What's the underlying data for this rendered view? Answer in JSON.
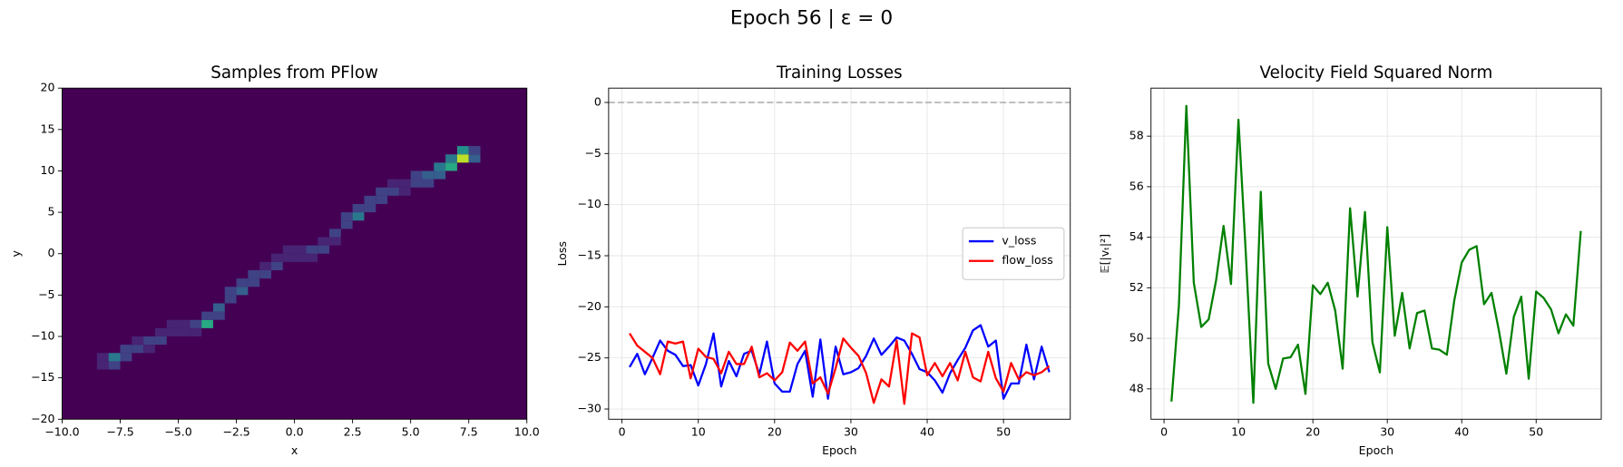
{
  "title": "Epoch 56 | ε = 0",
  "chart_data": [
    {
      "type": "heatmap",
      "title": "Samples from PFlow",
      "xlabel": "x",
      "ylabel": "y",
      "cmap": "viridis",
      "clim": [
        0,
        10
      ],
      "xlim": [
        -10,
        10
      ],
      "ylim": [
        -20,
        20
      ],
      "xticks": [
        {
          "value": -10,
          "label": "−10.0"
        },
        {
          "value": -7.5,
          "label": "−7.5"
        },
        {
          "value": -5,
          "label": "−5.0"
        },
        {
          "value": -2.5,
          "label": "−2.5"
        },
        {
          "value": 0,
          "label": "0.0"
        },
        {
          "value": 2.5,
          "label": "2.5"
        },
        {
          "value": 5,
          "label": "5.0"
        },
        {
          "value": 7.5,
          "label": "7.5"
        },
        {
          "value": 10,
          "label": "10.0"
        }
      ],
      "yticks": [
        {
          "value": -20,
          "label": "−20"
        },
        {
          "value": -15,
          "label": "−15"
        },
        {
          "value": -10,
          "label": "−10"
        },
        {
          "value": -5,
          "label": "−5"
        },
        0,
        5,
        10,
        15,
        20
      ],
      "bin_size": [
        0.5,
        1
      ],
      "cells": [
        {
          "x": -8.5,
          "y": -14,
          "count": 1
        },
        {
          "x": -8.5,
          "y": -13,
          "count": 1
        },
        {
          "x": -8,
          "y": -14,
          "count": 2
        },
        {
          "x": -8,
          "y": -13,
          "count": 4
        },
        {
          "x": -7.5,
          "y": -13,
          "count": 2
        },
        {
          "x": -7.5,
          "y": -12,
          "count": 2
        },
        {
          "x": -7,
          "y": -12,
          "count": 2
        },
        {
          "x": -7,
          "y": -11,
          "count": 1
        },
        {
          "x": -6.5,
          "y": -12,
          "count": 1
        },
        {
          "x": -6.5,
          "y": -11,
          "count": 2
        },
        {
          "x": -6,
          "y": -11,
          "count": 2
        },
        {
          "x": -6,
          "y": -10,
          "count": 1
        },
        {
          "x": -5.5,
          "y": -10,
          "count": 1
        },
        {
          "x": -5.5,
          "y": -9,
          "count": 1
        },
        {
          "x": -5,
          "y": -10,
          "count": 1
        },
        {
          "x": -5,
          "y": -9,
          "count": 1
        },
        {
          "x": -4.5,
          "y": -10,
          "count": 1
        },
        {
          "x": -4.5,
          "y": -9,
          "count": 2
        },
        {
          "x": -4,
          "y": -9,
          "count": 6
        },
        {
          "x": -4,
          "y": -8,
          "count": 2
        },
        {
          "x": -3.5,
          "y": -8,
          "count": 2
        },
        {
          "x": -3.5,
          "y": -7,
          "count": 3
        },
        {
          "x": -3,
          "y": -6,
          "count": 2
        },
        {
          "x": -3,
          "y": -5,
          "count": 2
        },
        {
          "x": -2.5,
          "y": -5,
          "count": 3
        },
        {
          "x": -2.5,
          "y": -4,
          "count": 2
        },
        {
          "x": -2,
          "y": -4,
          "count": 2
        },
        {
          "x": -2,
          "y": -3,
          "count": 2
        },
        {
          "x": -1.5,
          "y": -3,
          "count": 2
        },
        {
          "x": -1.5,
          "y": -2,
          "count": 1
        },
        {
          "x": -1,
          "y": -2,
          "count": 2
        },
        {
          "x": -1,
          "y": -1,
          "count": 1
        },
        {
          "x": -0.5,
          "y": -1,
          "count": 1
        },
        {
          "x": -0.5,
          "y": 0,
          "count": 1
        },
        {
          "x": 0,
          "y": -1,
          "count": 1
        },
        {
          "x": 0,
          "y": 0,
          "count": 1
        },
        {
          "x": 0.5,
          "y": -1,
          "count": 1
        },
        {
          "x": 0.5,
          "y": 0,
          "count": 2
        },
        {
          "x": 1,
          "y": 0,
          "count": 2
        },
        {
          "x": 1,
          "y": 1,
          "count": 1
        },
        {
          "x": 1.5,
          "y": 1,
          "count": 1
        },
        {
          "x": 1.5,
          "y": 2,
          "count": 2
        },
        {
          "x": 2,
          "y": 3,
          "count": 2
        },
        {
          "x": 2,
          "y": 4,
          "count": 2
        },
        {
          "x": 2.5,
          "y": 4,
          "count": 4
        },
        {
          "x": 2.5,
          "y": 5,
          "count": 2
        },
        {
          "x": 3,
          "y": 5,
          "count": 2
        },
        {
          "x": 3,
          "y": 6,
          "count": 2
        },
        {
          "x": 3.5,
          "y": 6,
          "count": 2
        },
        {
          "x": 3.5,
          "y": 7,
          "count": 2
        },
        {
          "x": 4,
          "y": 7,
          "count": 2
        },
        {
          "x": 4,
          "y": 8,
          "count": 1
        },
        {
          "x": 4.5,
          "y": 7,
          "count": 1
        },
        {
          "x": 4.5,
          "y": 8,
          "count": 1
        },
        {
          "x": 5,
          "y": 8,
          "count": 2
        },
        {
          "x": 5,
          "y": 9,
          "count": 2
        },
        {
          "x": 5.5,
          "y": 8,
          "count": 2
        },
        {
          "x": 5.5,
          "y": 9,
          "count": 3
        },
        {
          "x": 6,
          "y": 9,
          "count": 3
        },
        {
          "x": 6,
          "y": 10,
          "count": 4
        },
        {
          "x": 6.5,
          "y": 10,
          "count": 6
        },
        {
          "x": 6.5,
          "y": 11,
          "count": 4
        },
        {
          "x": 7,
          "y": 11,
          "count": 9
        },
        {
          "x": 7,
          "y": 12,
          "count": 5
        },
        {
          "x": 7.5,
          "y": 11,
          "count": 3
        },
        {
          "x": 7.5,
          "y": 12,
          "count": 2
        }
      ]
    },
    {
      "type": "line",
      "title": "Training Losses",
      "xlabel": "Epoch",
      "ylabel": "Loss",
      "grid": true,
      "legend": "center right",
      "xlim": [
        -1.75,
        58.75
      ],
      "ylim": [
        -31,
        1.4
      ],
      "xticks": [
        0,
        10,
        20,
        30,
        40,
        50
      ],
      "yticks": [
        {
          "value": -30,
          "label": "−30"
        },
        {
          "value": -25,
          "label": "−25"
        },
        {
          "value": -20,
          "label": "−20"
        },
        {
          "value": -15,
          "label": "−15"
        },
        {
          "value": -10,
          "label": "−10"
        },
        {
          "value": -5,
          "label": "−5"
        },
        0
      ],
      "hline": 0,
      "x": [
        1,
        2,
        3,
        4,
        5,
        6,
        7,
        8,
        9,
        10,
        11,
        12,
        13,
        14,
        15,
        16,
        17,
        18,
        19,
        20,
        21,
        22,
        23,
        24,
        25,
        26,
        27,
        28,
        29,
        30,
        31,
        32,
        33,
        34,
        35,
        36,
        37,
        38,
        39,
        40,
        41,
        42,
        43,
        44,
        45,
        46,
        47,
        48,
        49,
        50,
        51,
        52,
        53,
        54,
        55,
        56
      ],
      "series": [
        {
          "name": "v_loss",
          "color": "#0000ff",
          "values": [
            -25.9,
            -24.6,
            -26.6,
            -25.0,
            -23.3,
            -24.3,
            -24.7,
            -25.8,
            -25.7,
            -27.7,
            -25.6,
            -22.6,
            -27.8,
            -25.3,
            -26.8,
            -24.6,
            -24.3,
            -26.6,
            -23.4,
            -27.5,
            -28.3,
            -28.3,
            -25.6,
            -24.3,
            -28.8,
            -23.2,
            -29.0,
            -23.9,
            -26.6,
            -26.4,
            -26.0,
            -24.8,
            -23.1,
            -24.7,
            -23.9,
            -23.0,
            -23.3,
            -24.6,
            -26.1,
            -26.4,
            -27.2,
            -28.4,
            -26.5,
            -25.2,
            -24.0,
            -22.3,
            -21.8,
            -23.9,
            -23.3,
            -29.0,
            -27.5,
            -27.5,
            -23.7,
            -27.1,
            -23.9,
            -26.4
          ]
        },
        {
          "name": "flow_loss",
          "color": "#ff0000",
          "values": [
            -22.6,
            -23.8,
            -24.4,
            -25.0,
            -26.6,
            -23.4,
            -23.6,
            -23.4,
            -27.0,
            -24.1,
            -24.9,
            -25.1,
            -26.5,
            -24.4,
            -25.6,
            -25.6,
            -23.9,
            -26.9,
            -26.5,
            -27.2,
            -26.4,
            -23.5,
            -24.3,
            -23.4,
            -27.5,
            -26.9,
            -28.5,
            -26.0,
            -23.1,
            -24.0,
            -24.8,
            -26.5,
            -29.4,
            -27.1,
            -27.8,
            -23.3,
            -29.5,
            -22.6,
            -23.0,
            -26.7,
            -25.5,
            -26.8,
            -25.5,
            -27.2,
            -24.4,
            -26.9,
            -27.3,
            -24.4,
            -27.0,
            -28.3,
            -25.5,
            -27.1,
            -26.4,
            -26.7,
            -26.4,
            -25.8
          ]
        }
      ]
    },
    {
      "type": "line",
      "title": "Velocity Field Squared Norm",
      "xlabel": "Epoch",
      "ylabel": "𝔼[|vₜ|²]",
      "grid": true,
      "xlim": [
        -1.75,
        58.75
      ],
      "ylim": [
        46.8,
        59.9
      ],
      "xticks": [
        0,
        10,
        20,
        30,
        40,
        50
      ],
      "yticks": [
        48,
        50,
        52,
        54,
        56,
        58
      ],
      "x": [
        1,
        2,
        3,
        4,
        5,
        6,
        7,
        8,
        9,
        10,
        11,
        12,
        13,
        14,
        15,
        16,
        17,
        18,
        19,
        20,
        21,
        22,
        23,
        24,
        25,
        26,
        27,
        28,
        29,
        30,
        31,
        32,
        33,
        34,
        35,
        36,
        37,
        38,
        39,
        40,
        41,
        42,
        43,
        44,
        45,
        46,
        47,
        48,
        49,
        50,
        51,
        52,
        53,
        54,
        55,
        56
      ],
      "series": [
        {
          "name": null,
          "color": "#008000",
          "values": [
            47.5,
            51.3,
            59.2,
            52.2,
            50.45,
            50.75,
            52.3,
            54.45,
            52.15,
            58.65,
            53.3,
            47.45,
            55.8,
            49.0,
            48.0,
            49.2,
            49.25,
            49.75,
            47.8,
            52.1,
            51.75,
            52.2,
            51.1,
            48.8,
            55.15,
            51.65,
            55.0,
            49.85,
            48.65,
            54.4,
            50.1,
            51.8,
            49.6,
            51.0,
            51.1,
            49.6,
            49.55,
            49.35,
            51.5,
            53.0,
            53.5,
            53.65,
            51.35,
            51.8,
            50.3,
            48.6,
            50.85,
            51.65,
            48.4,
            51.85,
            51.6,
            51.15,
            50.2,
            50.95,
            50.5,
            54.25
          ]
        }
      ]
    }
  ]
}
